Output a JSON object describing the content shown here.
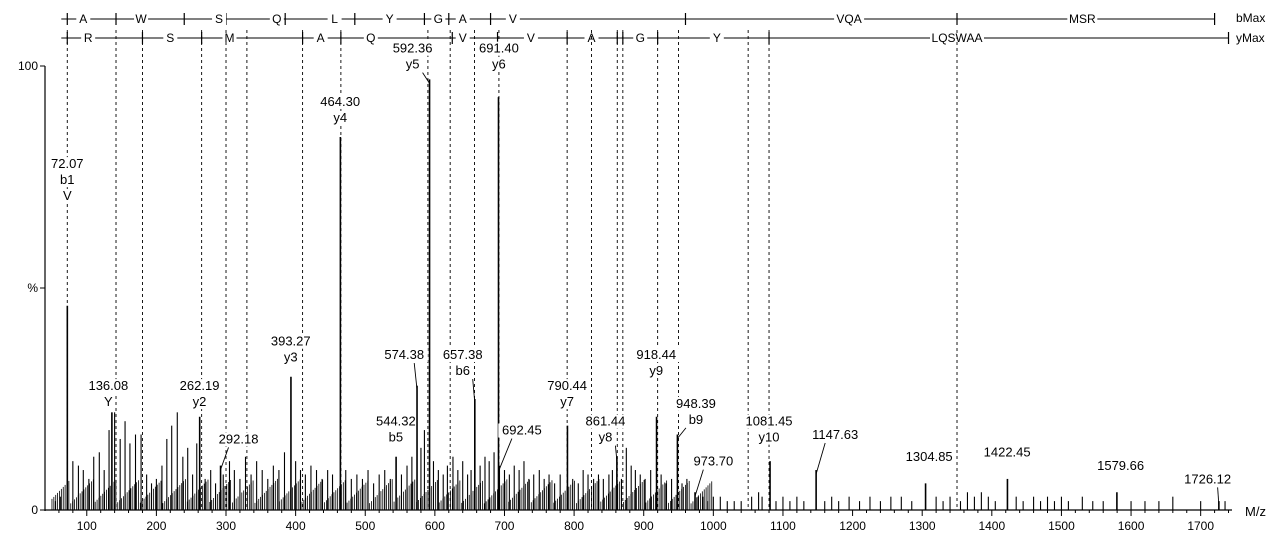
{
  "chart_data": {
    "type": "mass-spectrum",
    "x_axis": {
      "label": "M/z",
      "range": [
        40,
        1745
      ],
      "ticks": [
        100,
        200,
        300,
        400,
        500,
        600,
        700,
        800,
        900,
        1000,
        1100,
        1200,
        1300,
        1400,
        1500,
        1600,
        1700
      ]
    },
    "y_axis": {
      "range": [
        0,
        100
      ],
      "ticks": [
        {
          "value": 100,
          "label": "100"
        },
        {
          "value": 50,
          "label": "%"
        },
        {
          "value": 0,
          "label": "0"
        }
      ]
    },
    "b_ladder": {
      "label": "bMax",
      "residues": [
        {
          "aa": "A",
          "x": 95
        },
        {
          "aa": "W",
          "x": 178
        },
        {
          "aa": "S",
          "x": 290
        },
        {
          "aa": "Q",
          "x": 373
        },
        {
          "aa": "L",
          "x": 456
        },
        {
          "aa": "Y",
          "x": 535
        },
        {
          "aa": "G",
          "x": 605
        },
        {
          "aa": "A",
          "x": 640
        },
        {
          "aa": "V",
          "x": 712
        },
        {
          "aa": "VQA",
          "x": 1195
        },
        {
          "aa": "MSR",
          "x": 1530
        }
      ],
      "cuts": [
        72,
        142,
        240,
        300,
        385,
        485,
        585,
        620,
        680,
        960,
        1350,
        1720
      ]
    },
    "y_ladder": {
      "label": "yMax",
      "residues": [
        {
          "aa": "R",
          "x": 102
        },
        {
          "aa": "S",
          "x": 220
        },
        {
          "aa": "M",
          "x": 305
        },
        {
          "aa": "A",
          "x": 436
        },
        {
          "aa": "Q",
          "x": 508
        },
        {
          "aa": "V",
          "x": 640
        },
        {
          "aa": "V",
          "x": 738
        },
        {
          "aa": "A",
          "x": 825
        },
        {
          "aa": "G",
          "x": 895
        },
        {
          "aa": "Y",
          "x": 1005
        },
        {
          "aa": "LQSWAA",
          "x": 1350
        }
      ],
      "cuts": [
        72,
        180,
        265,
        410,
        465,
        625,
        690,
        790,
        862,
        870,
        920,
        1080,
        1740
      ]
    },
    "dotted_lines": [
      72,
      142,
      180,
      265,
      300,
      330,
      410,
      465,
      590,
      622,
      657,
      692,
      790,
      825,
      862,
      870,
      920,
      950,
      1050,
      1080,
      1350
    ],
    "peaks": [
      {
        "mz": 72.07,
        "intensity": 46,
        "label": [
          "72.07",
          "b1",
          "V"
        ],
        "label_mz": 72,
        "label_top": 77
      },
      {
        "mz": 136.08,
        "intensity": 22,
        "label": [
          "136.08",
          "Y"
        ],
        "label_mz": 131,
        "label_top": 27
      },
      {
        "mz": 262.19,
        "intensity": 21,
        "label": [
          "262.19",
          "y2"
        ],
        "label_mz": 262,
        "label_top": 27
      },
      {
        "mz": 292.18,
        "intensity": 10,
        "label": [
          "292.18"
        ],
        "label_mz": 318,
        "label_top": 15
      },
      {
        "mz": 393.27,
        "intensity": 30,
        "label": [
          "393.27",
          "y3"
        ],
        "label_mz": 393,
        "label_top": 37
      },
      {
        "mz": 464.3,
        "intensity": 84,
        "label": [
          "464.30",
          "y4"
        ],
        "label_mz": 464,
        "label_top": 91
      },
      {
        "mz": 544.32,
        "intensity": 12,
        "label": [
          "544.32",
          "b5"
        ],
        "label_mz": 544,
        "label_top": 19
      },
      {
        "mz": 574.38,
        "intensity": 28,
        "label": [
          "574.38"
        ],
        "label_mz": 556,
        "label_top": 34
      },
      {
        "mz": 592.36,
        "intensity": 97,
        "label": [
          "592.36",
          "y5"
        ],
        "label_mz": 568,
        "label_top": 103
      },
      {
        "mz": 657.38,
        "intensity": 25,
        "label": [
          "657.38",
          "b6"
        ],
        "label_mz": 640,
        "label_top": 34
      },
      {
        "mz": 691.4,
        "intensity": 93,
        "label": [
          "691.40",
          "y6"
        ],
        "label_mz": 692,
        "label_top": 103
      },
      {
        "mz": 692.45,
        "intensity": 10,
        "label": [
          "692.45"
        ],
        "label_mz": 725,
        "label_top": 17
      },
      {
        "mz": 790.44,
        "intensity": 19,
        "label": [
          "790.44",
          "y7"
        ],
        "label_mz": 790,
        "label_top": 27
      },
      {
        "mz": 861.44,
        "intensity": 12,
        "label": [
          "861.44",
          "y8"
        ],
        "label_mz": 845,
        "label_top": 19
      },
      {
        "mz": 918.44,
        "intensity": 21,
        "label": [
          "918.44",
          "y9"
        ],
        "label_mz": 918,
        "label_top": 34
      },
      {
        "mz": 948.39,
        "intensity": 17,
        "label": [
          "948.39",
          "b9"
        ],
        "label_mz": 975,
        "label_top": 23
      },
      {
        "mz": 973.7,
        "intensity": 4,
        "label": [
          "973.70"
        ],
        "label_mz": 1000,
        "label_top": 10
      },
      {
        "mz": 1081.45,
        "intensity": 11,
        "label": [
          "1081.45",
          "y10"
        ],
        "label_mz": 1080,
        "label_top": 19
      },
      {
        "mz": 1147.63,
        "intensity": 9,
        "label": [
          "1147.63"
        ],
        "label_mz": 1175,
        "label_top": 16
      },
      {
        "mz": 1304.85,
        "intensity": 6,
        "label": [
          "1304.85"
        ],
        "label_mz": 1310,
        "label_top": 11
      },
      {
        "mz": 1422.45,
        "intensity": 7,
        "label": [
          "1422.45"
        ],
        "label_mz": 1422,
        "label_top": 12
      },
      {
        "mz": 1579.66,
        "intensity": 4,
        "label": [
          "1579.66"
        ],
        "label_mz": 1585,
        "label_top": 9
      },
      {
        "mz": 1726.12,
        "intensity": 2,
        "label": [
          "1726.12"
        ],
        "label_mz": 1710,
        "label_top": 6
      }
    ],
    "noise": [
      [
        55,
        2
      ],
      [
        62,
        3
      ],
      [
        80,
        11
      ],
      [
        88,
        10
      ],
      [
        95,
        9
      ],
      [
        103,
        7
      ],
      [
        110,
        12
      ],
      [
        118,
        13
      ],
      [
        125,
        9
      ],
      [
        132,
        18
      ],
      [
        140,
        22
      ],
      [
        148,
        16
      ],
      [
        155,
        20
      ],
      [
        162,
        15
      ],
      [
        170,
        17
      ],
      [
        178,
        17
      ],
      [
        186,
        8
      ],
      [
        193,
        6
      ],
      [
        200,
        7
      ],
      [
        208,
        10
      ],
      [
        215,
        16
      ],
      [
        222,
        19
      ],
      [
        230,
        22
      ],
      [
        238,
        12
      ],
      [
        245,
        14
      ],
      [
        252,
        8
      ],
      [
        258,
        15
      ],
      [
        270,
        7
      ],
      [
        278,
        9
      ],
      [
        285,
        6
      ],
      [
        296,
        8
      ],
      [
        305,
        11
      ],
      [
        312,
        9
      ],
      [
        320,
        7
      ],
      [
        328,
        12
      ],
      [
        336,
        8
      ],
      [
        344,
        11
      ],
      [
        352,
        9
      ],
      [
        360,
        7
      ],
      [
        368,
        10
      ],
      [
        376,
        9
      ],
      [
        384,
        13
      ],
      [
        400,
        11
      ],
      [
        407,
        9
      ],
      [
        414,
        8
      ],
      [
        422,
        10
      ],
      [
        430,
        9
      ],
      [
        438,
        7
      ],
      [
        446,
        9
      ],
      [
        453,
        8
      ],
      [
        472,
        9
      ],
      [
        480,
        7
      ],
      [
        488,
        8
      ],
      [
        496,
        7
      ],
      [
        504,
        9
      ],
      [
        512,
        6
      ],
      [
        520,
        8
      ],
      [
        528,
        9
      ],
      [
        536,
        7
      ],
      [
        552,
        8
      ],
      [
        560,
        10
      ],
      [
        567,
        12
      ],
      [
        580,
        14
      ],
      [
        585,
        18
      ],
      [
        598,
        11
      ],
      [
        605,
        9
      ],
      [
        612,
        8
      ],
      [
        618,
        10
      ],
      [
        626,
        12
      ],
      [
        633,
        9
      ],
      [
        640,
        11
      ],
      [
        647,
        8
      ],
      [
        652,
        9
      ],
      [
        665,
        10
      ],
      [
        672,
        12
      ],
      [
        678,
        11
      ],
      [
        685,
        13
      ],
      [
        700,
        9
      ],
      [
        707,
        8
      ],
      [
        714,
        10
      ],
      [
        721,
        9
      ],
      [
        728,
        11
      ],
      [
        735,
        7
      ],
      [
        742,
        8
      ],
      [
        750,
        9
      ],
      [
        757,
        7
      ],
      [
        764,
        8
      ],
      [
        772,
        6
      ],
      [
        780,
        8
      ],
      [
        798,
        7
      ],
      [
        806,
        6
      ],
      [
        813,
        9
      ],
      [
        820,
        8
      ],
      [
        828,
        7
      ],
      [
        835,
        8
      ],
      [
        842,
        7
      ],
      [
        850,
        8
      ],
      [
        855,
        9
      ],
      [
        868,
        7
      ],
      [
        875,
        14
      ],
      [
        882,
        10
      ],
      [
        888,
        9
      ],
      [
        895,
        8
      ],
      [
        902,
        7
      ],
      [
        910,
        9
      ],
      [
        925,
        8
      ],
      [
        932,
        6
      ],
      [
        940,
        7
      ],
      [
        955,
        6
      ],
      [
        962,
        7
      ],
      [
        978,
        3
      ],
      [
        985,
        3
      ],
      [
        992,
        2
      ],
      [
        1000,
        3
      ],
      [
        1010,
        3
      ],
      [
        1020,
        2
      ],
      [
        1030,
        2
      ],
      [
        1040,
        2
      ],
      [
        1055,
        3
      ],
      [
        1065,
        4
      ],
      [
        1070,
        3
      ],
      [
        1090,
        2
      ],
      [
        1100,
        3
      ],
      [
        1110,
        2
      ],
      [
        1120,
        3
      ],
      [
        1130,
        2
      ],
      [
        1160,
        2
      ],
      [
        1170,
        3
      ],
      [
        1180,
        2
      ],
      [
        1195,
        3
      ],
      [
        1210,
        2
      ],
      [
        1225,
        3
      ],
      [
        1240,
        2
      ],
      [
        1255,
        3
      ],
      [
        1270,
        3
      ],
      [
        1285,
        2
      ],
      [
        1320,
        3
      ],
      [
        1330,
        2
      ],
      [
        1340,
        3
      ],
      [
        1355,
        2
      ],
      [
        1365,
        4
      ],
      [
        1375,
        3
      ],
      [
        1385,
        4
      ],
      [
        1395,
        3
      ],
      [
        1405,
        2
      ],
      [
        1435,
        3
      ],
      [
        1445,
        2
      ],
      [
        1460,
        3
      ],
      [
        1470,
        2
      ],
      [
        1480,
        3
      ],
      [
        1490,
        2
      ],
      [
        1500,
        3
      ],
      [
        1510,
        2
      ],
      [
        1530,
        3
      ],
      [
        1545,
        2
      ],
      [
        1560,
        2
      ],
      [
        1600,
        2
      ],
      [
        1620,
        2
      ],
      [
        1640,
        2
      ],
      [
        1660,
        3
      ],
      [
        1700,
        2
      ],
      [
        1735,
        2
      ]
    ]
  }
}
